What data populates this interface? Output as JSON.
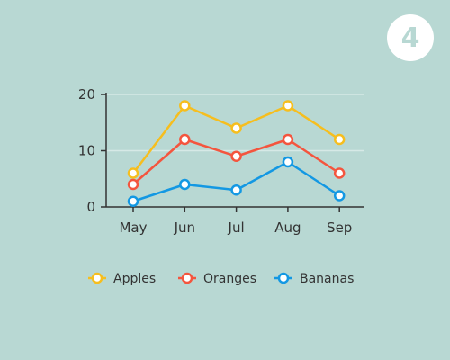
{
  "badge": {
    "text": "4"
  },
  "colors": {
    "background": "#b8d8d3",
    "grid": "#d6e9e6",
    "axis": "#333333"
  },
  "chart_data": {
    "type": "line",
    "categories": [
      "May",
      "Jun",
      "Jul",
      "Aug",
      "Sep"
    ],
    "ylim": [
      0,
      20
    ],
    "yticks": [
      0,
      10,
      20
    ],
    "grid": true,
    "legend_position": "bottom",
    "series": [
      {
        "name": "Apples",
        "color": "#f6be1e",
        "values": [
          6,
          18,
          14,
          18,
          12
        ]
      },
      {
        "name": "Oranges",
        "color": "#f4553e",
        "values": [
          4,
          12,
          9,
          12,
          6
        ]
      },
      {
        "name": "Bananas",
        "color": "#1398e3",
        "values": [
          1,
          4,
          3,
          8,
          2
        ]
      }
    ]
  }
}
